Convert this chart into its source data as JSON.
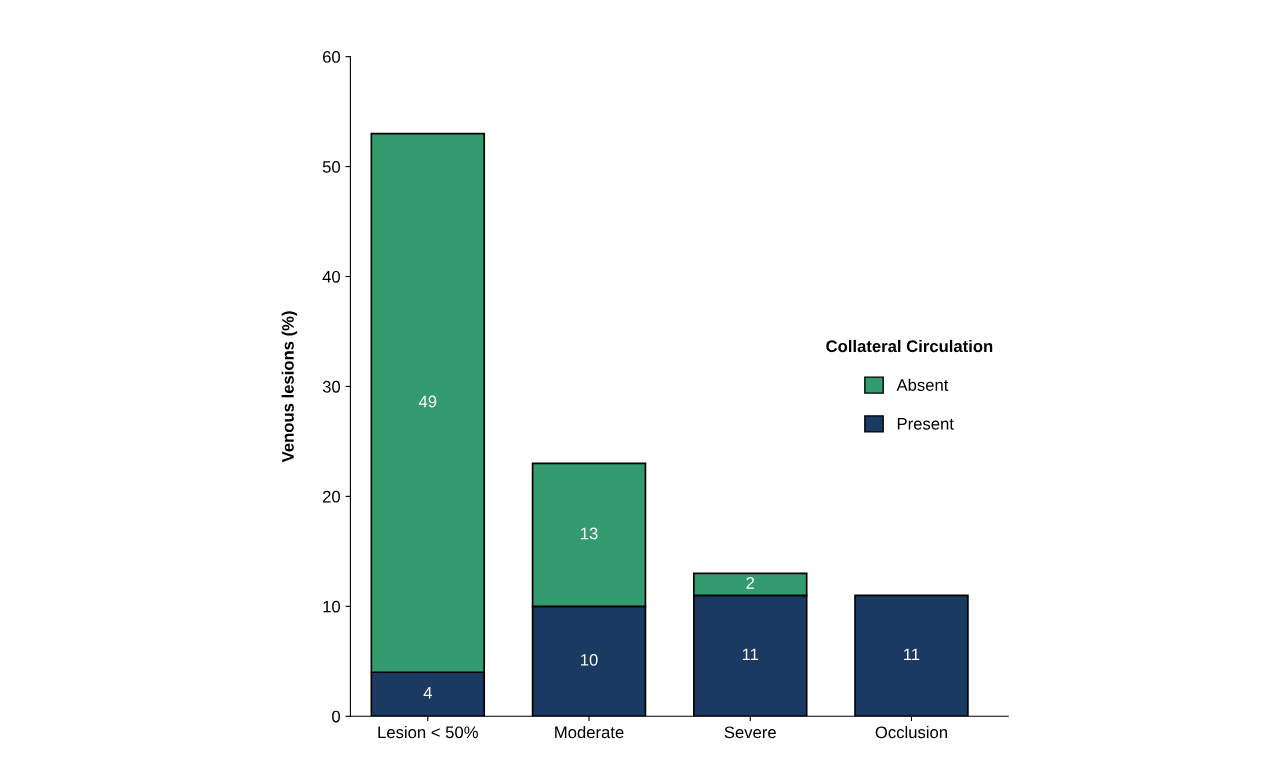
{
  "chart_data": {
    "type": "bar",
    "stacked": true,
    "ylabel": "Venous lesions (%)",
    "legend_title": "Collateral Circulation",
    "legend": "right",
    "categories": [
      "Lesion < 50%",
      "Moderate",
      "Severe",
      "Occlusion"
    ],
    "series": [
      {
        "name": "Present",
        "color": "#1b3a62",
        "values": [
          4,
          10,
          11,
          11
        ],
        "value_labels": [
          "4",
          "10",
          "11",
          "11"
        ]
      },
      {
        "name": "Absent",
        "color": "#349b6f",
        "values": [
          49,
          13,
          2,
          null
        ],
        "value_labels": [
          "49",
          "13",
          "2",
          null
        ]
      }
    ],
    "ylim": [
      0,
      60
    ],
    "yticks": [
      0,
      10,
      20,
      30,
      40,
      50,
      60
    ],
    "grid": false
  }
}
